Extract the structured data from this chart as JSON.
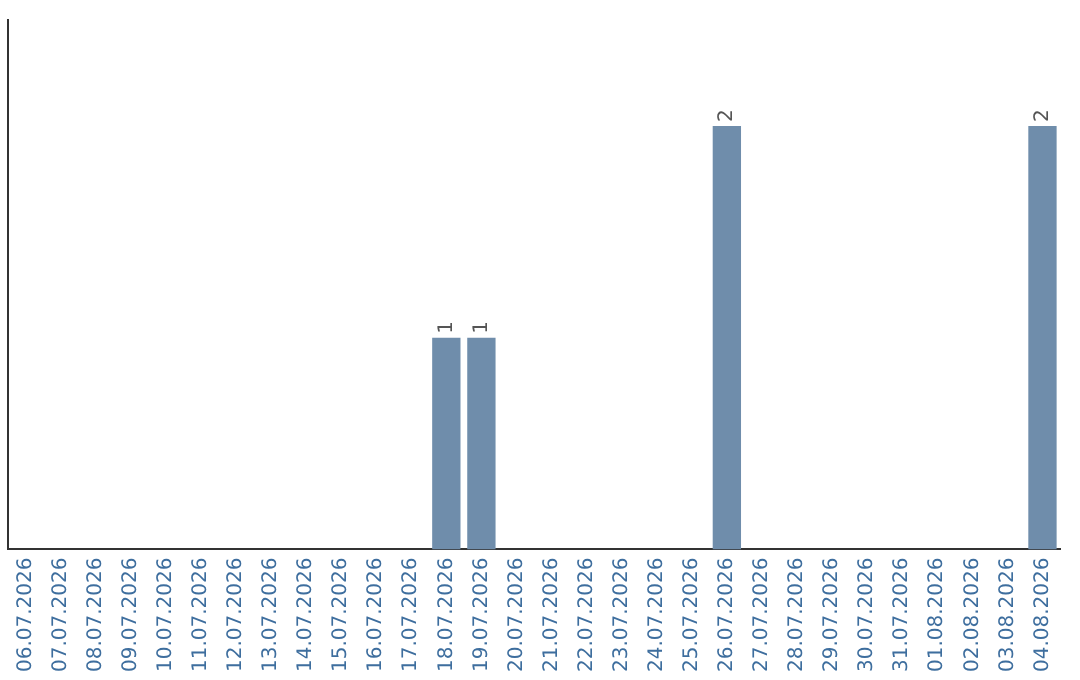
{
  "chart_data": {
    "type": "bar",
    "categories": [
      "06.07.2026",
      "07.07.2026",
      "08.07.2026",
      "09.07.2026",
      "10.07.2026",
      "11.07.2026",
      "12.07.2026",
      "13.07.2026",
      "14.07.2026",
      "15.07.2026",
      "16.07.2026",
      "17.07.2026",
      "18.07.2026",
      "19.07.2026",
      "20.07.2026",
      "21.07.2026",
      "22.07.2026",
      "23.07.2026",
      "24.07.2026",
      "25.07.2026",
      "26.07.2026",
      "27.07.2026",
      "28.07.2026",
      "29.07.2026",
      "30.07.2026",
      "31.07.2026",
      "01.08.2026",
      "02.08.2026",
      "03.08.2026",
      "04.08.2026"
    ],
    "values": [
      null,
      null,
      null,
      null,
      null,
      null,
      null,
      null,
      null,
      null,
      null,
      null,
      1,
      1,
      null,
      null,
      null,
      null,
      null,
      null,
      2,
      null,
      null,
      null,
      null,
      null,
      null,
      null,
      null,
      2
    ],
    "data_labels": true,
    "color": "#6f8dab",
    "tick_labels": "x",
    "grid": false,
    "legend": false
  }
}
